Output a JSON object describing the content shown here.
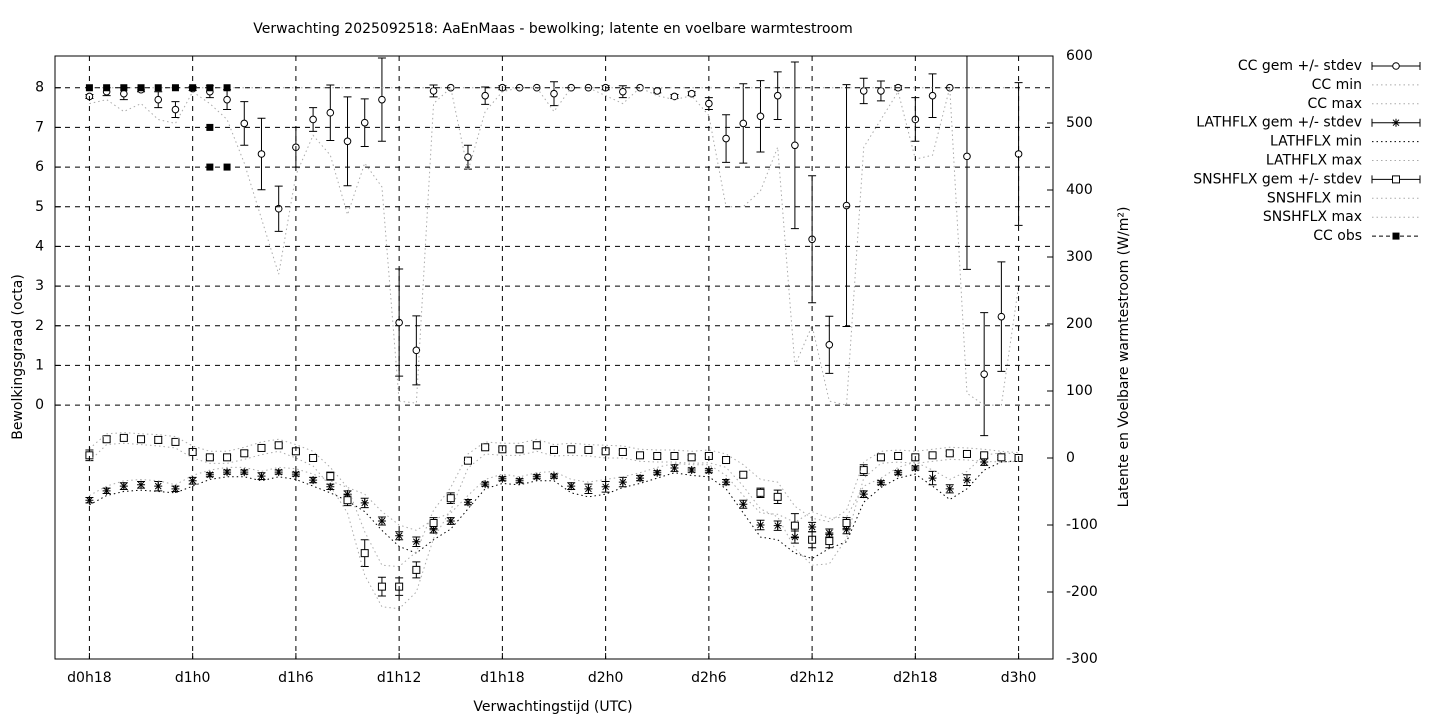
{
  "chart_data": {
    "type": "errorbar",
    "title": "Verwachting 2025092518: AaEnMaas - bewolking; latente en voelbare warmtestroom",
    "x_label": "Verwachtingstijd (UTC)",
    "y_label": "Bewolkingsgraad (octa)",
    "y2_label": "Latente en Voelbare warmtestroom (W/m²)",
    "xlim": [
      -2,
      56
    ],
    "xticks": [
      {
        "value": 0,
        "label": "d0h18"
      },
      {
        "value": 6,
        "label": "d1h0"
      },
      {
        "value": 12,
        "label": "d1h6"
      },
      {
        "value": 18,
        "label": "d1h12"
      },
      {
        "value": 24,
        "label": "d1h18"
      },
      {
        "value": 30,
        "label": "d2h0"
      },
      {
        "value": 36,
        "label": "d2h6"
      },
      {
        "value": 42,
        "label": "d2h12"
      },
      {
        "value": 48,
        "label": "d2h18"
      },
      {
        "value": 54,
        "label": "d3h0"
      }
    ],
    "ylim": [
      -6.4,
      8.8
    ],
    "yticks": [
      0,
      1,
      2,
      3,
      4,
      5,
      6,
      7,
      8
    ],
    "y2lim": [
      -300,
      600
    ],
    "y2ticks": [
      600,
      500,
      400,
      300,
      200,
      100,
      0,
      -100,
      -200,
      -300
    ],
    "grid": true,
    "legend": "outside-top-right",
    "x": [
      0,
      1,
      2,
      3,
      4,
      5,
      6,
      7,
      8,
      9,
      10,
      11,
      12,
      13,
      14,
      15,
      16,
      17,
      18,
      19,
      20,
      21,
      22,
      23,
      24,
      25,
      26,
      27,
      28,
      29,
      30,
      31,
      32,
      33,
      34,
      35,
      36,
      37,
      38,
      39,
      40,
      41,
      42,
      43,
      44,
      45,
      46,
      47,
      48,
      49,
      50,
      51,
      52,
      53,
      54
    ],
    "series": [
      {
        "name": "CC gem +/- stdev",
        "color": "#000000",
        "style": "errorbar",
        "marker": "circle",
        "values": [
          7.78,
          7.9,
          7.85,
          7.95,
          7.7,
          7.45,
          7.98,
          7.9,
          7.7,
          7.1,
          6.33,
          4.95,
          6.5,
          7.2,
          7.37,
          6.65,
          7.12,
          7.7,
          2.08,
          1.38,
          7.92,
          8,
          6.25,
          7.8,
          8,
          8,
          8,
          7.85,
          8,
          8,
          8,
          7.9,
          8,
          7.92,
          7.78,
          7.85,
          7.6,
          6.72,
          7.1,
          7.28,
          7.8,
          6.55,
          4.18,
          1.52,
          5.03,
          7.92,
          7.92,
          8,
          7.2,
          7.8,
          8,
          6.27,
          0.78,
          2.23,
          6.33
        ],
        "errors": [
          0.05,
          0.1,
          0.15,
          0.05,
          0.2,
          0.2,
          0.05,
          0.15,
          0.25,
          0.55,
          0.9,
          0.57,
          0.5,
          0.3,
          0.7,
          1.12,
          0.6,
          1.05,
          1.35,
          0.87,
          0.15,
          0,
          0.3,
          0.22,
          0.05,
          0,
          0,
          0.3,
          0,
          0,
          0.05,
          0.15,
          0,
          0.05,
          0.05,
          0.05,
          0.15,
          0.6,
          1.0,
          0.9,
          0.6,
          2.1,
          1.6,
          0.72,
          3.05,
          0.32,
          0.25,
          0.05,
          0.55,
          0.55,
          0,
          2.85,
          1.55,
          1.38,
          1.8
        ]
      },
      {
        "name": "CC min",
        "color": "#aaaaaa",
        "style": "dotted",
        "values": [
          7.6,
          7.7,
          7.4,
          7.6,
          7.2,
          7.1,
          7.9,
          7.6,
          7.2,
          6.1,
          4.7,
          3.3,
          5.8,
          6.8,
          6.3,
          4.8,
          6.1,
          5.5,
          0.1,
          0.05,
          7.6,
          8,
          5.9,
          7.4,
          7.9,
          8,
          8,
          7.4,
          8,
          8,
          7.8,
          7.6,
          8,
          7.8,
          7.7,
          7.8,
          7.3,
          5,
          5,
          5.4,
          6.5,
          1,
          2,
          0.1,
          0,
          6.5,
          7.2,
          7.9,
          6.2,
          6.3,
          8,
          0.3,
          0,
          0,
          3
        ]
      },
      {
        "name": "CC max",
        "color": "#aaaaaa",
        "style": "dotted",
        "values": [
          8,
          8,
          8,
          8,
          8,
          8,
          8,
          8,
          8,
          8,
          8,
          8,
          8,
          8,
          8,
          8,
          8,
          8,
          8,
          8,
          8,
          8,
          8,
          8,
          8,
          8,
          8,
          8,
          8,
          8,
          8,
          8,
          8,
          8,
          8,
          8,
          8,
          8,
          8,
          8,
          8,
          8,
          8,
          8,
          8,
          8,
          8,
          8,
          8,
          8,
          8,
          8,
          8,
          8,
          8
        ]
      },
      {
        "name": "LATHFLX gem +/- stdev",
        "color": "#000000",
        "style": "errorbar",
        "marker": "star",
        "axis": "y2",
        "values": [
          -63,
          -49,
          -42,
          -40,
          -42,
          -46,
          -34,
          -25,
          -21,
          -21,
          -27,
          -21,
          -24,
          -33,
          -43,
          -54,
          -67,
          -94,
          -116,
          -125,
          -107,
          -94,
          -66,
          -39,
          -31,
          -34,
          -28,
          -27,
          -42,
          -46,
          -43,
          -36,
          -30,
          -22,
          -15,
          -18,
          -19,
          -36,
          -69,
          -100,
          -101,
          -118,
          -103,
          -112,
          -107,
          -54,
          -37,
          -22,
          -15,
          -30,
          -46,
          -33,
          -6,
          1,
          0
        ],
        "errors": [
          4,
          4,
          5,
          5,
          7,
          4,
          5,
          3,
          3,
          3,
          5,
          3,
          3,
          4,
          4,
          5,
          7,
          6,
          6,
          7,
          5,
          5,
          4,
          3,
          3,
          3,
          3,
          3,
          5,
          7,
          8,
          7,
          4,
          3,
          5,
          3,
          3,
          4,
          6,
          7,
          7,
          9,
          7,
          6,
          6,
          5,
          3,
          3,
          3,
          10,
          6,
          8,
          5,
          3,
          3
        ]
      },
      {
        "name": "LATHFLX min",
        "color": "#000000",
        "style": "dotted",
        "axis": "y2",
        "values": [
          -70,
          -56,
          -50,
          -48,
          -50,
          -52,
          -42,
          -32,
          -28,
          -28,
          -34,
          -28,
          -32,
          -42,
          -52,
          -64,
          -80,
          -108,
          -132,
          -142,
          -122,
          -106,
          -76,
          -46,
          -38,
          -40,
          -34,
          -34,
          -52,
          -58,
          -54,
          -44,
          -38,
          -30,
          -22,
          -26,
          -28,
          -46,
          -82,
          -118,
          -122,
          -142,
          -150,
          -135,
          -125,
          -66,
          -44,
          -30,
          -24,
          -42,
          -62,
          -46,
          -18,
          -6,
          -4
        ]
      },
      {
        "name": "LATHFLX max",
        "color": "#aaaaaa",
        "style": "dotted",
        "axis": "y2",
        "values": [
          -56,
          -42,
          -34,
          -32,
          -34,
          -40,
          -26,
          -18,
          -14,
          -14,
          -20,
          -14,
          -16,
          -24,
          -34,
          -44,
          -54,
          -80,
          -100,
          -108,
          -92,
          -82,
          -56,
          -32,
          -24,
          -28,
          -22,
          -20,
          -32,
          -36,
          -32,
          -28,
          -22,
          -14,
          -8,
          -10,
          -10,
          -26,
          -56,
          -82,
          -84,
          -96,
          -80,
          -90,
          -88,
          -42,
          -30,
          -14,
          -6,
          -18,
          -32,
          -20,
          4,
          8,
          6
        ]
      },
      {
        "name": "SNSHFLX gem +/- stdev",
        "color": "#000000",
        "style": "errorbar",
        "marker": "square",
        "axis": "y2",
        "values": [
          4,
          28,
          30,
          28,
          27,
          24,
          9,
          1,
          1,
          7,
          15,
          19,
          10,
          0,
          -27,
          -63,
          -142,
          -192,
          -192,
          -167,
          -97,
          -60,
          -4,
          16,
          13,
          13,
          19,
          12,
          13,
          12,
          10,
          9,
          4,
          3,
          3,
          1,
          3,
          -3,
          -25,
          -52,
          -58,
          -101,
          -122,
          -124,
          -97,
          -18,
          1,
          3,
          1,
          4,
          7,
          6,
          4,
          1,
          0
        ],
        "errors": [
          8,
          4,
          3,
          3,
          5,
          3,
          3,
          3,
          3,
          4,
          3,
          3,
          3,
          3,
          6,
          8,
          20,
          14,
          13,
          12,
          8,
          8,
          4,
          3,
          3,
          3,
          5,
          3,
          3,
          3,
          3,
          3,
          3,
          3,
          3,
          3,
          3,
          3,
          4,
          7,
          10,
          18,
          12,
          10,
          8,
          8,
          3,
          3,
          3,
          3,
          3,
          3,
          3,
          3,
          3
        ]
      },
      {
        "name": "SNSHFLX min",
        "color": "#aaaaaa",
        "style": "dotted",
        "axis": "y2",
        "values": [
          -5,
          20,
          22,
          20,
          18,
          15,
          0,
          -8,
          -8,
          -2,
          5,
          10,
          0,
          -12,
          -42,
          -82,
          -175,
          -222,
          -225,
          -200,
          -120,
          -78,
          -15,
          6,
          4,
          4,
          10,
          3,
          4,
          3,
          0,
          0,
          -5,
          -6,
          -6,
          -8,
          -7,
          -14,
          -42,
          -76,
          -88,
          -135,
          -160,
          -158,
          -120,
          -30,
          -8,
          -6,
          -8,
          -5,
          -2,
          -3,
          -5,
          -6,
          -5
        ]
      },
      {
        "name": "SNSHFLX max",
        "color": "#aaaaaa",
        "style": "dotted",
        "axis": "y2",
        "values": [
          14,
          36,
          38,
          36,
          35,
          32,
          18,
          10,
          10,
          16,
          24,
          28,
          20,
          10,
          -14,
          -44,
          -110,
          -160,
          -162,
          -140,
          -78,
          -44,
          6,
          24,
          22,
          22,
          28,
          20,
          22,
          20,
          19,
          18,
          13,
          12,
          12,
          10,
          12,
          6,
          -10,
          -32,
          -36,
          -72,
          -90,
          -95,
          -78,
          -6,
          10,
          12,
          10,
          13,
          16,
          15,
          13,
          10,
          8
        ]
      },
      {
        "name": "CC obs",
        "color": "#000000",
        "style": "points",
        "marker": "filled-square",
        "x": [
          0,
          1,
          2,
          3,
          4,
          5,
          6,
          7,
          7,
          7,
          8,
          8
        ],
        "values": [
          8,
          8,
          8,
          8,
          8,
          8,
          8,
          8,
          7,
          6,
          8,
          6
        ]
      }
    ]
  }
}
